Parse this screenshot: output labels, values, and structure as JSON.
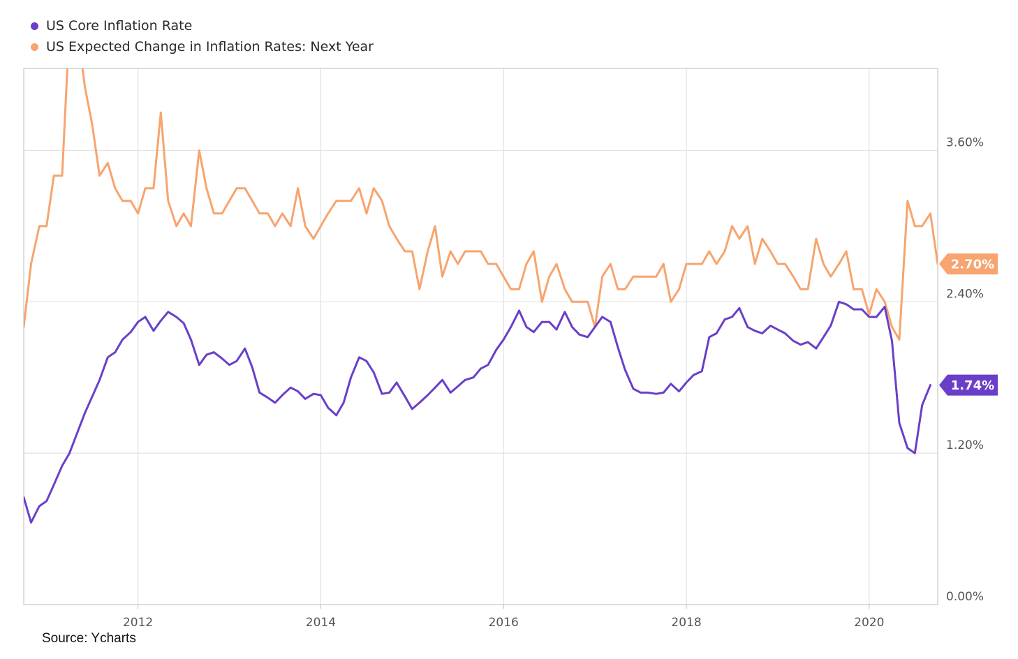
{
  "legend": {
    "core": "US Core Inflation Rate",
    "expected": "US Expected Change in Inflation Rates: Next Year"
  },
  "source": "Source: Ycharts",
  "colors": {
    "core": "#6a3fc8",
    "expected": "#f7a46f",
    "grid": "#e1e1e1",
    "axis": "#c8c8c8"
  },
  "chart_data": {
    "type": "line",
    "title": "",
    "xlabel": "",
    "ylabel": "",
    "x_range": [
      2010.75,
      2020.75
    ],
    "ylim": [
      0.0,
      4.25
    ],
    "x_ticks": [
      2012,
      2014,
      2016,
      2018,
      2020
    ],
    "y_ticks": [
      {
        "value": 0.0,
        "label": "0.00%"
      },
      {
        "value": 1.2,
        "label": "1.20%"
      },
      {
        "value": 2.4,
        "label": "2.40%"
      },
      {
        "value": 3.6,
        "label": "3.60%"
      }
    ],
    "grid": true,
    "legend_position": "top-left",
    "series": [
      {
        "name": "US Core Inflation Rate",
        "color": "#6a3fc8",
        "last_value_label": "1.74%",
        "points": [
          [
            2010.75,
            0.85
          ],
          [
            2010.83,
            0.65
          ],
          [
            2010.92,
            0.78
          ],
          [
            2011.0,
            0.82
          ],
          [
            2011.08,
            0.95
          ],
          [
            2011.17,
            1.1
          ],
          [
            2011.25,
            1.2
          ],
          [
            2011.33,
            1.35
          ],
          [
            2011.42,
            1.52
          ],
          [
            2011.5,
            1.65
          ],
          [
            2011.58,
            1.78
          ],
          [
            2011.67,
            1.96
          ],
          [
            2011.75,
            2.0
          ],
          [
            2011.83,
            2.1
          ],
          [
            2011.92,
            2.16
          ],
          [
            2012.0,
            2.24
          ],
          [
            2012.08,
            2.28
          ],
          [
            2012.17,
            2.17
          ],
          [
            2012.25,
            2.25
          ],
          [
            2012.33,
            2.32
          ],
          [
            2012.42,
            2.28
          ],
          [
            2012.5,
            2.23
          ],
          [
            2012.58,
            2.1
          ],
          [
            2012.67,
            1.9
          ],
          [
            2012.75,
            1.98
          ],
          [
            2012.83,
            2.0
          ],
          [
            2012.92,
            1.95
          ],
          [
            2013.0,
            1.9
          ],
          [
            2013.08,
            1.93
          ],
          [
            2013.17,
            2.03
          ],
          [
            2013.25,
            1.88
          ],
          [
            2013.33,
            1.68
          ],
          [
            2013.42,
            1.64
          ],
          [
            2013.5,
            1.6
          ],
          [
            2013.58,
            1.66
          ],
          [
            2013.67,
            1.72
          ],
          [
            2013.75,
            1.69
          ],
          [
            2013.83,
            1.63
          ],
          [
            2013.92,
            1.67
          ],
          [
            2014.0,
            1.66
          ],
          [
            2014.08,
            1.56
          ],
          [
            2014.17,
            1.5
          ],
          [
            2014.25,
            1.6
          ],
          [
            2014.33,
            1.8
          ],
          [
            2014.42,
            1.96
          ],
          [
            2014.5,
            1.93
          ],
          [
            2014.58,
            1.84
          ],
          [
            2014.67,
            1.67
          ],
          [
            2014.75,
            1.68
          ],
          [
            2014.83,
            1.76
          ],
          [
            2014.92,
            1.65
          ],
          [
            2015.0,
            1.55
          ],
          [
            2015.08,
            1.6
          ],
          [
            2015.17,
            1.66
          ],
          [
            2015.25,
            1.72
          ],
          [
            2015.33,
            1.78
          ],
          [
            2015.42,
            1.68
          ],
          [
            2015.5,
            1.73
          ],
          [
            2015.58,
            1.78
          ],
          [
            2015.67,
            1.8
          ],
          [
            2015.75,
            1.87
          ],
          [
            2015.83,
            1.9
          ],
          [
            2015.92,
            2.02
          ],
          [
            2016.0,
            2.1
          ],
          [
            2016.08,
            2.2
          ],
          [
            2016.17,
            2.33
          ],
          [
            2016.25,
            2.2
          ],
          [
            2016.33,
            2.16
          ],
          [
            2016.42,
            2.24
          ],
          [
            2016.5,
            2.24
          ],
          [
            2016.58,
            2.18
          ],
          [
            2016.67,
            2.32
          ],
          [
            2016.75,
            2.2
          ],
          [
            2016.83,
            2.14
          ],
          [
            2016.92,
            2.12
          ],
          [
            2017.0,
            2.2
          ],
          [
            2017.08,
            2.28
          ],
          [
            2017.17,
            2.24
          ],
          [
            2017.25,
            2.04
          ],
          [
            2017.33,
            1.86
          ],
          [
            2017.42,
            1.71
          ],
          [
            2017.5,
            1.68
          ],
          [
            2017.58,
            1.68
          ],
          [
            2017.67,
            1.67
          ],
          [
            2017.75,
            1.68
          ],
          [
            2017.83,
            1.75
          ],
          [
            2017.92,
            1.69
          ],
          [
            2018.0,
            1.76
          ],
          [
            2018.08,
            1.82
          ],
          [
            2018.17,
            1.85
          ],
          [
            2018.25,
            2.12
          ],
          [
            2018.33,
            2.15
          ],
          [
            2018.42,
            2.26
          ],
          [
            2018.5,
            2.28
          ],
          [
            2018.58,
            2.35
          ],
          [
            2018.67,
            2.2
          ],
          [
            2018.75,
            2.17
          ],
          [
            2018.83,
            2.15
          ],
          [
            2018.92,
            2.21
          ],
          [
            2019.0,
            2.18
          ],
          [
            2019.08,
            2.15
          ],
          [
            2019.17,
            2.09
          ],
          [
            2019.25,
            2.06
          ],
          [
            2019.33,
            2.08
          ],
          [
            2019.42,
            2.03
          ],
          [
            2019.5,
            2.12
          ],
          [
            2019.58,
            2.21
          ],
          [
            2019.67,
            2.4
          ],
          [
            2019.75,
            2.38
          ],
          [
            2019.83,
            2.34
          ],
          [
            2019.92,
            2.34
          ],
          [
            2020.0,
            2.28
          ],
          [
            2020.08,
            2.28
          ],
          [
            2020.17,
            2.36
          ],
          [
            2020.25,
            2.09
          ],
          [
            2020.33,
            1.44
          ],
          [
            2020.42,
            1.24
          ],
          [
            2020.5,
            1.2
          ],
          [
            2020.58,
            1.58
          ],
          [
            2020.67,
            1.74
          ]
        ]
      },
      {
        "name": "US Expected Change in Inflation Rates: Next Year",
        "color": "#f7a46f",
        "last_value_label": "2.70%",
        "points": [
          [
            2010.75,
            2.2
          ],
          [
            2010.83,
            2.7
          ],
          [
            2010.92,
            3.0
          ],
          [
            2011.0,
            3.0
          ],
          [
            2011.08,
            3.4
          ],
          [
            2011.17,
            3.4
          ],
          [
            2011.25,
            4.6
          ],
          [
            2011.33,
            4.6
          ],
          [
            2011.42,
            4.1
          ],
          [
            2011.5,
            3.8
          ],
          [
            2011.58,
            3.4
          ],
          [
            2011.67,
            3.5
          ],
          [
            2011.75,
            3.3
          ],
          [
            2011.83,
            3.2
          ],
          [
            2011.92,
            3.2
          ],
          [
            2012.0,
            3.1
          ],
          [
            2012.08,
            3.3
          ],
          [
            2012.17,
            3.3
          ],
          [
            2012.25,
            3.9
          ],
          [
            2012.33,
            3.2
          ],
          [
            2012.42,
            3.0
          ],
          [
            2012.5,
            3.1
          ],
          [
            2012.58,
            3.0
          ],
          [
            2012.67,
            3.6
          ],
          [
            2012.75,
            3.3
          ],
          [
            2012.83,
            3.1
          ],
          [
            2012.92,
            3.1
          ],
          [
            2013.0,
            3.2
          ],
          [
            2013.08,
            3.3
          ],
          [
            2013.17,
            3.3
          ],
          [
            2013.25,
            3.2
          ],
          [
            2013.33,
            3.1
          ],
          [
            2013.42,
            3.1
          ],
          [
            2013.5,
            3.0
          ],
          [
            2013.58,
            3.1
          ],
          [
            2013.67,
            3.0
          ],
          [
            2013.75,
            3.3
          ],
          [
            2013.83,
            3.0
          ],
          [
            2013.92,
            2.9
          ],
          [
            2014.0,
            3.0
          ],
          [
            2014.08,
            3.1
          ],
          [
            2014.17,
            3.2
          ],
          [
            2014.25,
            3.2
          ],
          [
            2014.33,
            3.2
          ],
          [
            2014.42,
            3.3
          ],
          [
            2014.5,
            3.1
          ],
          [
            2014.58,
            3.3
          ],
          [
            2014.67,
            3.2
          ],
          [
            2014.75,
            3.0
          ],
          [
            2014.83,
            2.9
          ],
          [
            2014.92,
            2.8
          ],
          [
            2015.0,
            2.8
          ],
          [
            2015.08,
            2.5
          ],
          [
            2015.17,
            2.8
          ],
          [
            2015.25,
            3.0
          ],
          [
            2015.33,
            2.6
          ],
          [
            2015.42,
            2.8
          ],
          [
            2015.5,
            2.7
          ],
          [
            2015.58,
            2.8
          ],
          [
            2015.67,
            2.8
          ],
          [
            2015.75,
            2.8
          ],
          [
            2015.83,
            2.7
          ],
          [
            2015.92,
            2.7
          ],
          [
            2016.0,
            2.6
          ],
          [
            2016.08,
            2.5
          ],
          [
            2016.17,
            2.5
          ],
          [
            2016.25,
            2.7
          ],
          [
            2016.33,
            2.8
          ],
          [
            2016.42,
            2.4
          ],
          [
            2016.5,
            2.6
          ],
          [
            2016.58,
            2.7
          ],
          [
            2016.67,
            2.5
          ],
          [
            2016.75,
            2.4
          ],
          [
            2016.83,
            2.4
          ],
          [
            2016.92,
            2.4
          ],
          [
            2017.0,
            2.2
          ],
          [
            2017.08,
            2.6
          ],
          [
            2017.17,
            2.7
          ],
          [
            2017.25,
            2.5
          ],
          [
            2017.33,
            2.5
          ],
          [
            2017.42,
            2.6
          ],
          [
            2017.5,
            2.6
          ],
          [
            2017.58,
            2.6
          ],
          [
            2017.67,
            2.6
          ],
          [
            2017.75,
            2.7
          ],
          [
            2017.83,
            2.4
          ],
          [
            2017.92,
            2.5
          ],
          [
            2018.0,
            2.7
          ],
          [
            2018.08,
            2.7
          ],
          [
            2018.17,
            2.7
          ],
          [
            2018.25,
            2.8
          ],
          [
            2018.33,
            2.7
          ],
          [
            2018.42,
            2.8
          ],
          [
            2018.5,
            3.0
          ],
          [
            2018.58,
            2.9
          ],
          [
            2018.67,
            3.0
          ],
          [
            2018.75,
            2.7
          ],
          [
            2018.83,
            2.9
          ],
          [
            2018.92,
            2.8
          ],
          [
            2019.0,
            2.7
          ],
          [
            2019.08,
            2.7
          ],
          [
            2019.17,
            2.6
          ],
          [
            2019.25,
            2.5
          ],
          [
            2019.33,
            2.5
          ],
          [
            2019.42,
            2.9
          ],
          [
            2019.5,
            2.7
          ],
          [
            2019.58,
            2.6
          ],
          [
            2019.67,
            2.7
          ],
          [
            2019.75,
            2.8
          ],
          [
            2019.83,
            2.5
          ],
          [
            2019.92,
            2.5
          ],
          [
            2020.0,
            2.3
          ],
          [
            2020.08,
            2.5
          ],
          [
            2020.17,
            2.4
          ],
          [
            2020.25,
            2.2
          ],
          [
            2020.33,
            2.1
          ],
          [
            2020.42,
            3.2
          ],
          [
            2020.5,
            3.0
          ],
          [
            2020.58,
            3.0
          ],
          [
            2020.67,
            3.1
          ],
          [
            2020.75,
            2.7
          ]
        ]
      }
    ]
  }
}
